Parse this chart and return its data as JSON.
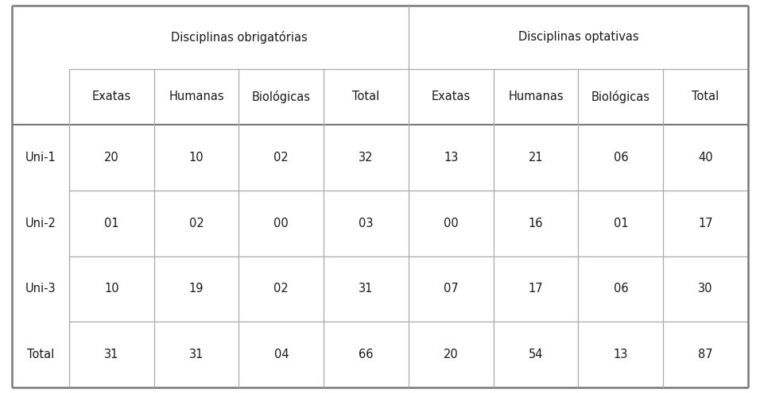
{
  "col_group_headers": [
    "Disciplinas obrigatórias",
    "Disciplinas optativas"
  ],
  "col_subheaders": [
    "Exatas",
    "Humanas",
    "Biológicas",
    "Total",
    "Exatas",
    "Humanas",
    "Biológicas",
    "Total"
  ],
  "row_labels": [
    "Uni-1",
    "Uni-2",
    "Uni-3",
    "Total"
  ],
  "table_data": [
    [
      "20",
      "10",
      "02",
      "32",
      "13",
      "21",
      "06",
      "40"
    ],
    [
      "01",
      "02",
      "00",
      "03",
      "00",
      "16",
      "01",
      "17"
    ],
    [
      "10",
      "19",
      "02",
      "31",
      "07",
      "17",
      "06",
      "30"
    ],
    [
      "31",
      "31",
      "04",
      "66",
      "20",
      "54",
      "13",
      "87"
    ]
  ],
  "bg_color": "#ffffff",
  "text_color": "#1a1a1a",
  "line_color": "#aaaaaa",
  "border_color": "#888888",
  "thick_color": "#777777",
  "fontsize_header": 10.5,
  "fontsize_data": 10.5
}
